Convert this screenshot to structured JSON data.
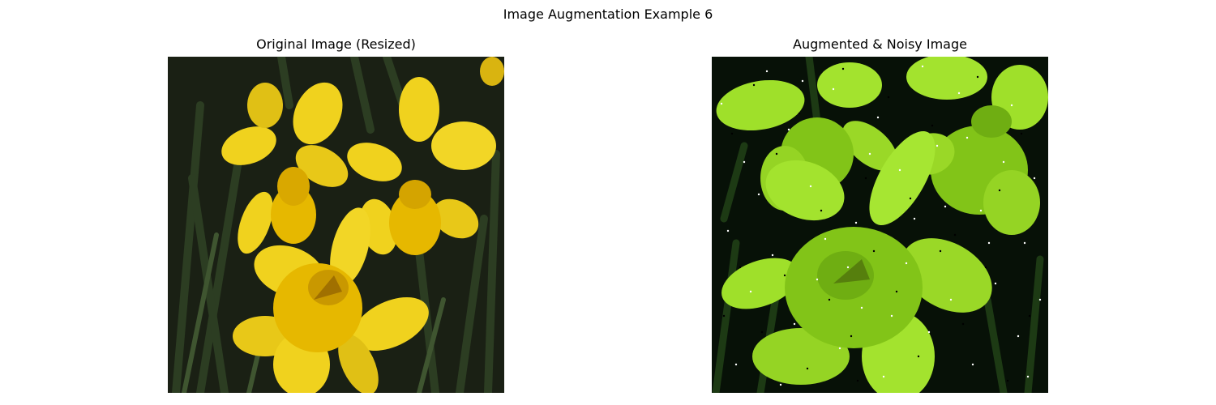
{
  "figure": {
    "suptitle": "Image Augmentation Example 6"
  },
  "panels": [
    {
      "title": "Original Image (Resized)",
      "subject": "yellow daffodils",
      "colors": {
        "background": "#1a2014",
        "leaf": "#2c3d22",
        "petal": "#f0d21e",
        "petal_shade": "#d9b410",
        "trumpet": "#e6b800"
      }
    },
    {
      "title": "Augmented & Noisy Image",
      "subject": "yellow daffodils, color-shifted with salt-and-pepper noise",
      "colors": {
        "background": "#071107",
        "leaf": "#1d3a14",
        "petal": "#9fe02a",
        "petal_shade": "#82c418",
        "trumpet": "#8ac61f"
      }
    }
  ]
}
